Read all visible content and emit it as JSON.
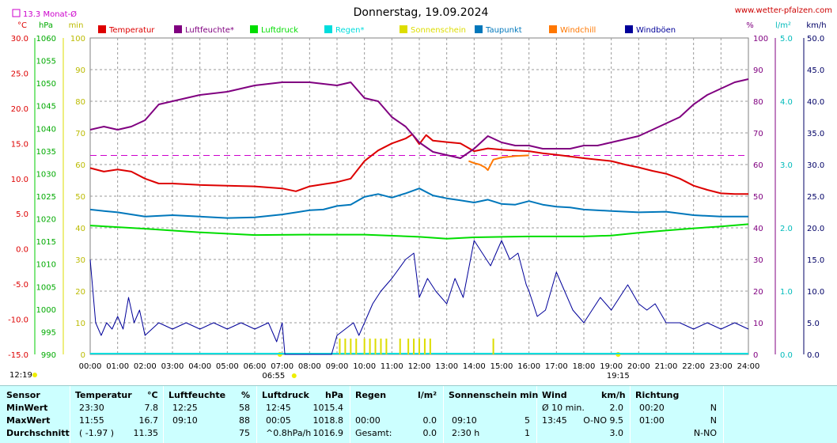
{
  "header": {
    "title": "Donnerstag, 19.09.2024",
    "site": "www.wetter-pfalzen.com",
    "monthly_avg_label": "13.3 Monat-Ø"
  },
  "axes": {
    "left_units": [
      "°C",
      "hPa",
      "min"
    ],
    "right_units": [
      "%",
      "l/m²",
      "km/h"
    ],
    "temp_ticks": [
      "30.0",
      "25.0",
      "20.0",
      "15.0",
      "10.0",
      "5.0",
      "0.0",
      "-5.0",
      "-10.0",
      "-15.0"
    ],
    "press_ticks": [
      "1060",
      "1055",
      "1050",
      "1045",
      "1040",
      "1035",
      "1030",
      "1025",
      "1020",
      "1015",
      "1010",
      "1005",
      "1000",
      "995",
      "990"
    ],
    "min_ticks": [
      "100",
      "90",
      "80",
      "70",
      "60",
      "50",
      "40",
      "30",
      "20",
      "10",
      "0"
    ],
    "pct_ticks": [
      "100",
      "90",
      "80",
      "70",
      "60",
      "50",
      "40",
      "30",
      "20",
      "10",
      "0"
    ],
    "rain_ticks": [
      "5.0",
      "4.0",
      "3.0",
      "2.0",
      "1.0",
      "0.0"
    ],
    "wind_ticks": [
      "50.0",
      "45.0",
      "40.0",
      "35.0",
      "30.0",
      "25.0",
      "20.0",
      "15.0",
      "10.0",
      "5.0",
      "0.0"
    ],
    "time_ticks": [
      "00:00",
      "01:00",
      "02:00",
      "03:00",
      "04:00",
      "05:00",
      "06:00",
      "07:00",
      "08:00",
      "09:00",
      "10:00",
      "11:00",
      "12:00",
      "13:00",
      "14:00",
      "15:00",
      "16:00",
      "17:00",
      "18:00",
      "19:00",
      "20:00",
      "21:00",
      "22:00",
      "23:00",
      "24:00"
    ],
    "sunrise": "06:55",
    "sunset": "19:15",
    "daylength": "12:19"
  },
  "legend": [
    {
      "label": "Temperatur",
      "color": "#dd0000"
    },
    {
      "label": "Luftfeuchte*",
      "color": "#800080"
    },
    {
      "label": "Luftdruck",
      "color": "#00dd00"
    },
    {
      "label": "Regen*",
      "color": "#00dddd"
    },
    {
      "label": "Sonnenschein",
      "color": "#dddd00"
    },
    {
      "label": "Taupunkt",
      "color": "#0077bb"
    },
    {
      "label": "Windchill",
      "color": "#ff7700"
    },
    {
      "label": "Windböen",
      "color": "#000099"
    }
  ],
  "chart_data": {
    "type": "line",
    "title": "Donnerstag, 19.09.2024",
    "x_unit": "hour",
    "xlim": [
      0,
      24
    ],
    "series": [
      {
        "name": "Temperatur",
        "unit": "°C",
        "ylim": [
          -15,
          30
        ],
        "color": "#dd0000",
        "points": [
          [
            0,
            11.5
          ],
          [
            0.5,
            11.0
          ],
          [
            1,
            11.3
          ],
          [
            1.5,
            11.0
          ],
          [
            2,
            10.0
          ],
          [
            2.5,
            9.3
          ],
          [
            3,
            9.3
          ],
          [
            3.5,
            9.2
          ],
          [
            4,
            9.1
          ],
          [
            5,
            9.0
          ],
          [
            6,
            8.9
          ],
          [
            7,
            8.6
          ],
          [
            7.5,
            8.2
          ],
          [
            8,
            8.9
          ],
          [
            8.5,
            9.2
          ],
          [
            9,
            9.5
          ],
          [
            9.5,
            10.0
          ],
          [
            10,
            12.5
          ],
          [
            10.5,
            14.0
          ],
          [
            11,
            15.0
          ],
          [
            11.5,
            15.7
          ],
          [
            11.75,
            16.3
          ],
          [
            12,
            14.9
          ],
          [
            12.25,
            16.2
          ],
          [
            12.5,
            15.4
          ],
          [
            13,
            15.2
          ],
          [
            13.5,
            15.0
          ],
          [
            14,
            13.9
          ],
          [
            14.5,
            14.3
          ],
          [
            15,
            14.1
          ],
          [
            15.5,
            14.0
          ],
          [
            16,
            13.9
          ],
          [
            16.5,
            13.6
          ],
          [
            17,
            13.4
          ],
          [
            18,
            12.9
          ],
          [
            19,
            12.5
          ],
          [
            19.5,
            12.0
          ],
          [
            20,
            11.6
          ],
          [
            20.5,
            11.1
          ],
          [
            21,
            10.7
          ],
          [
            21.5,
            10.0
          ],
          [
            22,
            9.0
          ],
          [
            22.5,
            8.4
          ],
          [
            23,
            7.9
          ],
          [
            23.5,
            7.8
          ],
          [
            24,
            7.8
          ]
        ]
      },
      {
        "name": "Luftfeuchte",
        "unit": "%",
        "ylim": [
          0,
          100
        ],
        "color": "#800080",
        "points": [
          [
            0,
            71
          ],
          [
            0.5,
            72
          ],
          [
            1,
            71
          ],
          [
            1.5,
            72
          ],
          [
            2,
            74
          ],
          [
            2.5,
            79
          ],
          [
            3,
            80
          ],
          [
            3.5,
            81
          ],
          [
            4,
            82
          ],
          [
            5,
            83
          ],
          [
            6,
            85
          ],
          [
            7,
            86
          ],
          [
            8,
            86
          ],
          [
            9,
            85
          ],
          [
            9.5,
            86
          ],
          [
            10,
            81
          ],
          [
            10.5,
            80
          ],
          [
            11,
            75
          ],
          [
            11.5,
            72
          ],
          [
            12,
            67
          ],
          [
            12.5,
            64
          ],
          [
            13,
            63
          ],
          [
            13.5,
            62
          ],
          [
            14,
            65
          ],
          [
            14.5,
            69
          ],
          [
            15,
            67
          ],
          [
            15.5,
            66
          ],
          [
            16,
            66
          ],
          [
            16.5,
            65
          ],
          [
            17,
            65
          ],
          [
            17.5,
            65
          ],
          [
            18,
            66
          ],
          [
            18.5,
            66
          ],
          [
            19,
            67
          ],
          [
            19.5,
            68
          ],
          [
            20,
            69
          ],
          [
            20.5,
            71
          ],
          [
            21,
            73
          ],
          [
            21.5,
            75
          ],
          [
            22,
            79
          ],
          [
            22.5,
            82
          ],
          [
            23,
            84
          ],
          [
            23.5,
            86
          ],
          [
            24,
            87
          ]
        ]
      },
      {
        "name": "Luftdruck",
        "unit": "hPa",
        "ylim": [
          990,
          1060
        ],
        "color": "#00dd00",
        "points": [
          [
            0,
            1018.5
          ],
          [
            2,
            1017.8
          ],
          [
            4,
            1017.0
          ],
          [
            6,
            1016.4
          ],
          [
            8,
            1016.5
          ],
          [
            10,
            1016.5
          ],
          [
            12,
            1016.0
          ],
          [
            13,
            1015.6
          ],
          [
            14,
            1015.9
          ],
          [
            16,
            1016.1
          ],
          [
            18,
            1016.1
          ],
          [
            19,
            1016.3
          ],
          [
            20,
            1016.9
          ],
          [
            21,
            1017.4
          ],
          [
            22,
            1017.9
          ],
          [
            23,
            1018.3
          ],
          [
            24,
            1018.8
          ]
        ]
      },
      {
        "name": "Taupunkt",
        "unit": "°C",
        "ylim": [
          -15,
          30
        ],
        "color": "#0077bb",
        "points": [
          [
            0,
            5.6
          ],
          [
            0.5,
            5.4
          ],
          [
            1,
            5.2
          ],
          [
            2,
            4.6
          ],
          [
            3,
            4.8
          ],
          [
            4,
            4.6
          ],
          [
            5,
            4.4
          ],
          [
            6,
            4.5
          ],
          [
            7,
            4.9
          ],
          [
            8,
            5.5
          ],
          [
            8.5,
            5.6
          ],
          [
            9,
            6.1
          ],
          [
            9.5,
            6.3
          ],
          [
            10,
            7.4
          ],
          [
            10.5,
            7.8
          ],
          [
            11,
            7.3
          ],
          [
            11.5,
            7.9
          ],
          [
            12,
            8.6
          ],
          [
            12.5,
            7.6
          ],
          [
            13,
            7.2
          ],
          [
            13.5,
            6.9
          ],
          [
            14,
            6.6
          ],
          [
            14.5,
            7.0
          ],
          [
            15,
            6.4
          ],
          [
            15.5,
            6.3
          ],
          [
            16,
            6.8
          ],
          [
            16.5,
            6.3
          ],
          [
            17,
            6.0
          ],
          [
            17.5,
            5.9
          ],
          [
            18,
            5.6
          ],
          [
            19,
            5.4
          ],
          [
            20,
            5.2
          ],
          [
            21,
            5.3
          ],
          [
            22,
            4.8
          ],
          [
            23,
            4.6
          ],
          [
            24,
            4.6
          ]
        ]
      },
      {
        "name": "Windchill",
        "unit": "°C",
        "ylim": [
          -15,
          30
        ],
        "color": "#ff7700",
        "points": [
          [
            13.8,
            12.5
          ],
          [
            14.0,
            12.2
          ],
          [
            14.2,
            12.0
          ],
          [
            14.4,
            11.6
          ],
          [
            14.5,
            11.2
          ],
          [
            14.7,
            12.7
          ],
          [
            15.0,
            13.0
          ],
          [
            15.5,
            13.2
          ],
          [
            16.0,
            13.3
          ]
        ]
      },
      {
        "name": "Windböen",
        "unit": "km/h",
        "ylim": [
          0,
          50
        ],
        "color": "#000099",
        "points": [
          [
            0,
            15
          ],
          [
            0.2,
            5
          ],
          [
            0.4,
            3
          ],
          [
            0.6,
            5
          ],
          [
            0.8,
            4
          ],
          [
            1,
            6
          ],
          [
            1.2,
            4
          ],
          [
            1.4,
            9
          ],
          [
            1.6,
            5
          ],
          [
            1.8,
            7
          ],
          [
            2,
            3
          ],
          [
            2.5,
            5
          ],
          [
            3,
            4
          ],
          [
            3.5,
            5
          ],
          [
            4,
            4
          ],
          [
            4.5,
            5
          ],
          [
            5,
            4
          ],
          [
            5.5,
            5
          ],
          [
            6,
            4
          ],
          [
            6.5,
            5
          ],
          [
            6.8,
            2
          ],
          [
            7,
            5
          ],
          [
            7.1,
            0
          ],
          [
            8.8,
            0
          ],
          [
            9.0,
            3
          ],
          [
            9.3,
            4
          ],
          [
            9.6,
            5
          ],
          [
            9.8,
            3
          ],
          [
            10,
            5
          ],
          [
            10.3,
            8
          ],
          [
            10.6,
            10
          ],
          [
            11,
            12
          ],
          [
            11.5,
            15
          ],
          [
            11.8,
            16
          ],
          [
            12,
            9
          ],
          [
            12.3,
            12
          ],
          [
            12.6,
            10
          ],
          [
            13,
            8
          ],
          [
            13.3,
            12
          ],
          [
            13.6,
            9
          ],
          [
            14,
            18
          ],
          [
            14.3,
            16
          ],
          [
            14.6,
            14
          ],
          [
            15,
            18
          ],
          [
            15.3,
            15
          ],
          [
            15.6,
            16
          ],
          [
            15.9,
            11
          ],
          [
            16,
            10
          ],
          [
            16.3,
            6
          ],
          [
            16.6,
            7
          ],
          [
            17,
            13
          ],
          [
            17.3,
            10
          ],
          [
            17.6,
            7
          ],
          [
            18,
            5
          ],
          [
            18.3,
            7
          ],
          [
            18.6,
            9
          ],
          [
            19,
            7
          ],
          [
            19.3,
            9
          ],
          [
            19.6,
            11
          ],
          [
            20,
            8
          ],
          [
            20.3,
            7
          ],
          [
            20.6,
            8
          ],
          [
            21,
            5
          ],
          [
            21.5,
            5
          ],
          [
            22,
            4
          ],
          [
            22.5,
            5
          ],
          [
            23,
            4
          ],
          [
            23.5,
            5
          ],
          [
            24,
            4
          ]
        ]
      },
      {
        "name": "Sonnenschein",
        "unit": "min",
        "ylim": [
          0,
          100
        ],
        "color": "#dddd00",
        "points": [
          [
            9.1,
            5
          ],
          [
            9.3,
            5
          ],
          [
            9.5,
            5
          ],
          [
            9.7,
            5
          ],
          [
            10.0,
            5
          ],
          [
            10.2,
            5
          ],
          [
            10.4,
            5
          ],
          [
            10.6,
            5
          ],
          [
            10.8,
            5
          ],
          [
            11.3,
            5
          ],
          [
            11.6,
            5
          ],
          [
            11.8,
            5
          ],
          [
            12.0,
            5
          ],
          [
            12.2,
            5
          ],
          [
            12.4,
            5
          ],
          [
            14.7,
            5
          ]
        ]
      }
    ],
    "reference_line": {
      "label": "13.3 Monat-Ø",
      "value": 13.3,
      "unit": "°C"
    }
  },
  "stats": {
    "headers": {
      "sensor": "Sensor",
      "temp": "Temperatur",
      "temp_unit": "°C",
      "hum": "Luftfeuchte",
      "hum_unit": "%",
      "press": "Luftdruck",
      "press_unit": "hPa",
      "rain": "Regen",
      "rain_unit": "l/m²",
      "sun": "Sonnenschein min",
      "wind": "Wind",
      "wind_unit": "km/h",
      "dir": "Richtung"
    },
    "rows": [
      {
        "label": "MinWert",
        "temp_time": "23:30",
        "temp_val": "7.8",
        "hum_time": "12:25",
        "hum_val": "58",
        "press_time": "12:45",
        "press_val": "1015.4",
        "rain_time": "",
        "rain_val": "",
        "sun_time": "",
        "sun_val": "",
        "wind_time": "Ø 10 min.",
        "wind_val": "2.0",
        "dir_time": "00:20",
        "dir_val": "N"
      },
      {
        "label": "MaxWert",
        "temp_time": "11:55",
        "temp_val": "16.7",
        "hum_time": "09:10",
        "hum_val": "88",
        "press_time": "00:05",
        "press_val": "1018.8",
        "rain_time": "00:00",
        "rain_val": "0.0",
        "sun_time": "09:10",
        "sun_val": "5",
        "wind_time": "13:45",
        "wind_val": "O-NO 9.5",
        "dir_time": "01:00",
        "dir_val": "N"
      },
      {
        "label": "Durchschnitt",
        "temp_time": "( -1.97 )",
        "temp_val": "11.35",
        "hum_time": "",
        "hum_val": "75",
        "press_time": "^0.8hPa/h",
        "press_val": "1016.9",
        "rain_time": "Gesamt:",
        "rain_val": "0.0",
        "sun_time": "2:30 h",
        "sun_val": "1",
        "wind_time": "",
        "wind_val": "3.0",
        "dir_time": "",
        "dir_val": "N-NO"
      }
    ]
  }
}
